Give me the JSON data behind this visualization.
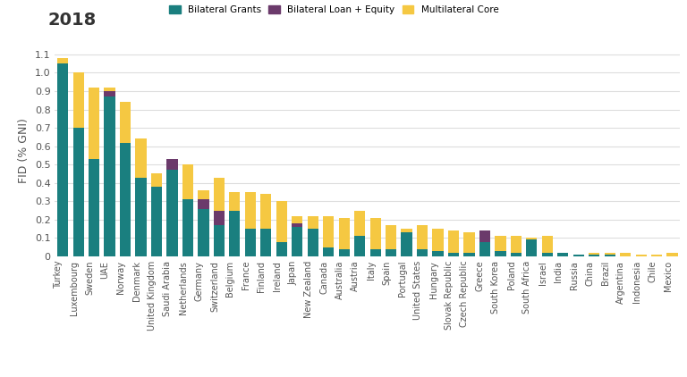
{
  "title": "2018",
  "ylabel": "FID (% GNI)",
  "ylim": [
    0,
    1.15
  ],
  "yticks": [
    0,
    0.1,
    0.2,
    0.3,
    0.4,
    0.5,
    0.6,
    0.7,
    0.8,
    0.9,
    1.0,
    1.1
  ],
  "bg_color": "#ffffff",
  "grid_color": "#dddddd",
  "colors": {
    "bilateral_grants": "#1a7f7f",
    "bilateral_loan": "#6b3a6b",
    "multilateral": "#f5c842"
  },
  "legend": [
    "Bilateral Grants",
    "Bilateral Loan + Equity",
    "Multilateral Core"
  ],
  "countries": [
    "Turkey",
    "Luxembourg",
    "Sweden",
    "UAE",
    "Norway",
    "Denmark",
    "United Kingdom",
    "Saudi Arabia",
    "Netherlands",
    "Germany",
    "Switzerland",
    "Belgium",
    "France",
    "Finland",
    "Ireland",
    "Japan",
    "New Zealand",
    "Canada",
    "Australia",
    "Austria",
    "Italy",
    "Spain",
    "Portugal",
    "United States",
    "Hungary",
    "Slovak Republic",
    "Czech Republic",
    "Greece",
    "South Korea",
    "Poland",
    "South Africa",
    "Israel",
    "India",
    "Russia",
    "China",
    "Brazil",
    "Argentina",
    "Indonesia",
    "Chile",
    "Mexico"
  ],
  "bilateral_grants": [
    1.05,
    0.7,
    0.53,
    0.87,
    0.62,
    0.43,
    0.38,
    0.47,
    0.31,
    0.26,
    0.17,
    0.25,
    0.15,
    0.15,
    0.08,
    0.16,
    0.15,
    0.05,
    0.04,
    0.11,
    0.04,
    0.04,
    0.13,
    0.04,
    0.03,
    0.02,
    0.02,
    0.08,
    0.03,
    0.02,
    0.09,
    0.02,
    0.02,
    0.01,
    0.01,
    0.01,
    0.0,
    0.0,
    0.0,
    0.0
  ],
  "bilateral_loan": [
    0.0,
    0.0,
    0.0,
    0.03,
    0.0,
    0.0,
    0.0,
    0.06,
    0.0,
    0.05,
    0.08,
    0.0,
    0.0,
    0.0,
    0.0,
    0.02,
    0.0,
    0.0,
    0.0,
    0.0,
    0.0,
    0.0,
    0.0,
    0.0,
    0.0,
    0.0,
    0.0,
    0.06,
    0.0,
    0.0,
    0.0,
    0.0,
    0.0,
    0.0,
    0.0,
    0.0,
    0.0,
    0.0,
    0.0,
    0.0
  ],
  "multilateral": [
    0.03,
    0.3,
    0.39,
    0.02,
    0.22,
    0.21,
    0.07,
    0.0,
    0.19,
    0.05,
    0.18,
    0.1,
    0.2,
    0.19,
    0.22,
    0.04,
    0.07,
    0.17,
    0.17,
    0.14,
    0.17,
    0.13,
    0.02,
    0.13,
    0.12,
    0.12,
    0.11,
    0.0,
    0.08,
    0.09,
    0.01,
    0.09,
    0.0,
    0.0,
    0.01,
    0.01,
    0.02,
    0.01,
    0.01,
    0.02
  ]
}
